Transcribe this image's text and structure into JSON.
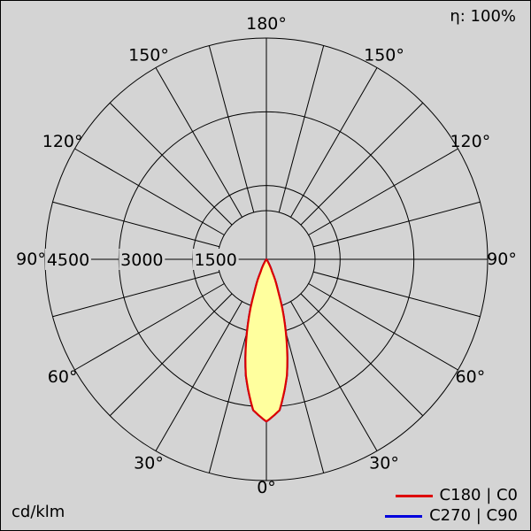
{
  "header": {
    "efficiency": "η: 100%"
  },
  "footer": {
    "unit": "cd/klm"
  },
  "legend": {
    "entries": [
      {
        "label": "C180 | C0",
        "color": "#dd0000"
      },
      {
        "label": "C270 | C90",
        "color": "#0000dd"
      }
    ]
  },
  "chart_data": {
    "type": "polar",
    "subtype": "luminous-intensity-distribution",
    "unit": "cd/klm",
    "efficiency_label": "η: 100%",
    "radial_ticks": [
      1500,
      3000,
      4500
    ],
    "radial_max": 4500,
    "angle_step_deg": 15,
    "angle_labels": [
      {
        "label": "180°",
        "angle": 180,
        "side": "center"
      },
      {
        "label": "150°",
        "angle": 150,
        "side": "left"
      },
      {
        "label": "150°",
        "angle": 150,
        "side": "right"
      },
      {
        "label": "120°",
        "angle": 120,
        "side": "left"
      },
      {
        "label": "120°",
        "angle": 120,
        "side": "right"
      },
      {
        "label": "90°",
        "angle": 90,
        "side": "left"
      },
      {
        "label": "90°",
        "angle": 90,
        "side": "right"
      },
      {
        "label": "60°",
        "angle": 60,
        "side": "left"
      },
      {
        "label": "60°",
        "angle": 60,
        "side": "right"
      },
      {
        "label": "30°",
        "angle": 30,
        "side": "left"
      },
      {
        "label": "30°",
        "angle": 30,
        "side": "right"
      },
      {
        "label": "0°",
        "angle": 0,
        "side": "center"
      }
    ],
    "colors": {
      "background": "#d4d4d4",
      "grid": "#000000",
      "text": "#000000",
      "beam_fill": "#ffff9e",
      "c0_curve": "#dd0000",
      "c90_curve": "#0000dd"
    },
    "series": [
      {
        "name": "C180 | C0",
        "color": "#dd0000",
        "fill": "#ffff9e",
        "gamma_deg": [
          0,
          5,
          10,
          15,
          20,
          25,
          30,
          35,
          40,
          45
        ],
        "values_cd_per_klm": [
          3300,
          3080,
          2400,
          1520,
          720,
          270,
          90,
          30,
          8,
          0
        ]
      },
      {
        "name": "C270 | C90",
        "color": "#0000dd",
        "fill": "#ffff9e",
        "gamma_deg": [
          0,
          5,
          10,
          15,
          20,
          25,
          30,
          35,
          40,
          45
        ],
        "values_cd_per_klm": [
          3300,
          3080,
          2400,
          1520,
          720,
          270,
          90,
          30,
          8,
          0
        ]
      }
    ]
  }
}
